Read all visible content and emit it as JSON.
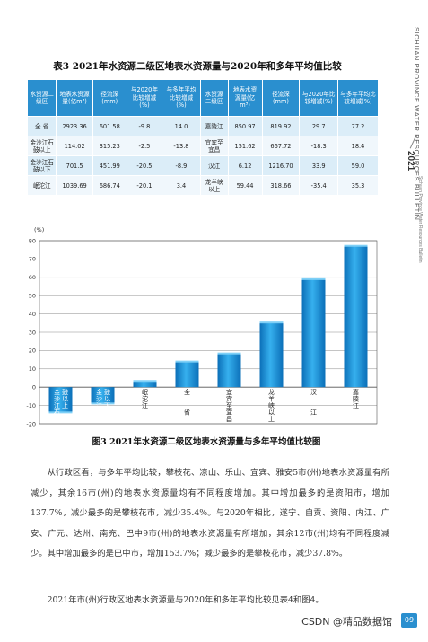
{
  "side_band": {
    "en_title": "SICHUAN PROVINCE WATER RESOURCES BULLETIN",
    "year": "2021",
    "small_text": "Sichuan Province Water Resources Bulletin"
  },
  "table": {
    "title": "表3  2021年水资源二级区地表水资源量与2020年和多年平均值比较",
    "headers": [
      "水资源二级区",
      "地表水资源量(亿m³)",
      "径流深(mm)",
      "与2020年比较增减(%)",
      "与多年平均比较增减(%)",
      "水资源二级区",
      "地表水资源量(亿m³)",
      "径流深(mm)",
      "与2020年比较增减(%)",
      "与多年平均比较增减(%)"
    ],
    "rows": [
      [
        "全  省",
        "2923.36",
        "601.58",
        "-9.8",
        "14.0",
        "嘉陵江",
        "850.97",
        "819.92",
        "29.7",
        "77.2"
      ],
      [
        "金沙江石鼓以上",
        "114.02",
        "315.23",
        "-2.5",
        "-13.8",
        "宜宾至宜昌",
        "151.62",
        "667.72",
        "-18.3",
        "18.4"
      ],
      [
        "金沙江石鼓以下",
        "701.5",
        "451.99",
        "-20.5",
        "-8.9",
        "汉江",
        "6.12",
        "1216.70",
        "33.9",
        "59.0"
      ],
      [
        "岷沱江",
        "1039.69",
        "686.74",
        "-20.1",
        "3.4",
        "龙羊峡以上",
        "59.44",
        "318.66",
        "-35.4",
        "35.3"
      ]
    ]
  },
  "chart_data": {
    "type": "bar",
    "ylabel": "(%)",
    "ylim": [
      -20,
      80
    ],
    "yticks": [
      -20,
      -10,
      0,
      10,
      20,
      30,
      40,
      50,
      60,
      70,
      80
    ],
    "categories": [
      "石鼓以上金沙江",
      "石鼓以下金沙江",
      "岷沱江",
      "全省",
      "宜宾至宜昌",
      "龙羊峡以上",
      "汉江",
      "嘉陵江"
    ],
    "category_labels": [
      "金沙江石鼓以上",
      "金沙江石鼓以下",
      "岷沱江",
      "全  省",
      "宜宾至宜昌",
      "龙羊峡以上",
      "汉  江",
      "嘉陵江"
    ],
    "values": [
      -13.8,
      -8.9,
      3.4,
      14.0,
      18.4,
      35.3,
      59.0,
      77.2
    ],
    "grid": true,
    "bar_color": "#1e95d8"
  },
  "figure_caption": "图3  2021年水资源二级区地表水资源量与多年平均值比较图",
  "paragraphs": [
    "从行政区看，与多年平均比较，攀枝花、凉山、乐山、宜宾、雅安5市(州)地表水资源量有所减少，其余16市(州)的地表水资源量均有不同程度增加。其中增加最多的是资阳市，增加137.7%，减少最多的是攀枝花市，减少35.4%。与2020年相比，遂宁、自贡、资阳、内江、广安、广元、达州、南充、巴中9市(州)的地表水资源量有所增加，其余12市(州)均有不同程度减少。其中增加最多的是巴中市，增加153.7%；减少最多的是攀枝花市，减少37.8%。",
    "2021年市(州)行政区地表水资源量与2020年和多年平均比较见表4和图4。"
  ],
  "footer": {
    "watermark": "CSDN @精品数据馆",
    "page_number": "09"
  }
}
